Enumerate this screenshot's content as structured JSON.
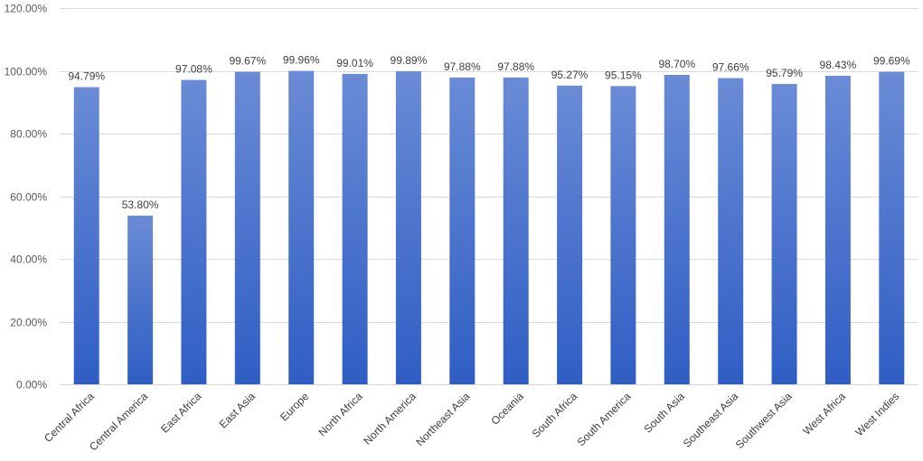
{
  "chart_data": {
    "type": "bar",
    "title": "",
    "xlabel": "",
    "ylabel": "",
    "categories": [
      "Central Africa",
      "Central America",
      "East Africa",
      "East Asia",
      "Europe",
      "North Africa",
      "North America",
      "Northeast Asia",
      "Oceania",
      "South Africa",
      "South America",
      "South Asia",
      "Southeast Asia",
      "Southwest Asia",
      "West Africa",
      "West Indies"
    ],
    "values": [
      94.79,
      53.8,
      97.08,
      99.67,
      99.96,
      99.01,
      99.89,
      97.88,
      97.88,
      95.27,
      95.15,
      98.7,
      97.66,
      95.79,
      98.43,
      99.69
    ],
    "data_labels": [
      "94.79%",
      "53.80%",
      "97.08%",
      "99.67%",
      "99.96%",
      "99.01%",
      "99.89%",
      "97.88%",
      "97.88%",
      "95.27%",
      "95.15%",
      "98.70%",
      "97.66%",
      "95.79%",
      "98.43%",
      "99.69%"
    ],
    "ylim": [
      0,
      120
    ],
    "yticks": [
      0,
      20,
      40,
      60,
      80,
      100,
      120
    ],
    "ytick_labels": [
      "0.00%",
      "20.00%",
      "40.00%",
      "60.00%",
      "80.00%",
      "100.00%",
      "120.00%"
    ],
    "grid": true,
    "legend": "none",
    "colors": {
      "bar_top": "#6a8bd6",
      "bar_bottom": "#2f5ec4",
      "grid": "#d9d9d9"
    }
  }
}
